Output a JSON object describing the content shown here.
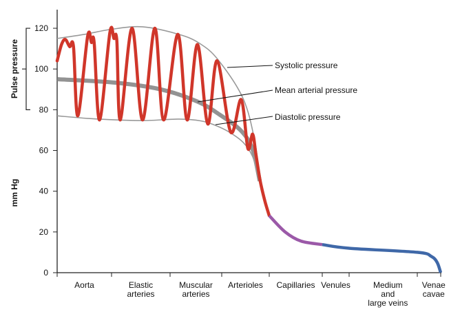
{
  "chart_data": {
    "type": "line",
    "ylabel": "mm Hg",
    "bracket_label": "Pulse pressure",
    "bracket_range": [
      80,
      120
    ],
    "ylim": [
      0,
      130
    ],
    "yticks": [
      0,
      20,
      40,
      60,
      80,
      100,
      120
    ],
    "grid": false,
    "categories": [
      [
        "Aorta"
      ],
      [
        "Elastic",
        "arteries"
      ],
      [
        "Muscular",
        "arteries"
      ],
      [
        "Arterioles"
      ],
      [
        "Capillaries"
      ],
      [
        "Venules"
      ],
      [
        "Medium",
        "and",
        "large veins"
      ],
      [
        "Venae",
        "cavae"
      ]
    ],
    "category_spans": [
      [
        0,
        1
      ],
      [
        1,
        2
      ],
      [
        2,
        3
      ],
      [
        3,
        4
      ],
      [
        4,
        5
      ],
      [
        5,
        6
      ],
      [
        6,
        7.4
      ],
      [
        7.4,
        8
      ]
    ],
    "annotations": {
      "systolic": "Systolic pressure",
      "mean": "Mean arterial pressure",
      "diastolic": "Diastolic pressure"
    },
    "colors": {
      "arterial": "#d0362a",
      "capillary": "#9b59a8",
      "venous": "#3f68a8",
      "envelope": "#999999",
      "mean": "#808080"
    },
    "series": {
      "systolic": [
        [
          0,
          115
        ],
        [
          0.5,
          117
        ],
        [
          1,
          119.5
        ],
        [
          1.53,
          120.7
        ],
        [
          2.17,
          117
        ],
        [
          2.57,
          112.6
        ],
        [
          2.93,
          104.5
        ],
        [
          3.45,
          85.5
        ],
        [
          3.7,
          64
        ],
        [
          3.8,
          45
        ]
      ],
      "diastolic": [
        [
          0,
          77
        ],
        [
          0.7,
          75.5
        ],
        [
          1.53,
          74.7
        ],
        [
          2.17,
          75.4
        ],
        [
          2.6,
          74.5
        ],
        [
          2.88,
          72.3
        ],
        [
          3.16,
          69
        ],
        [
          3.45,
          64
        ],
        [
          3.65,
          57
        ],
        [
          3.8,
          45
        ]
      ],
      "mean": [
        [
          0,
          95
        ],
        [
          1.06,
          93.3
        ],
        [
          1.84,
          90
        ],
        [
          2.53,
          84
        ],
        [
          2.97,
          77.4
        ],
        [
          3.41,
          69.6
        ],
        [
          3.65,
          60.5
        ],
        [
          3.8,
          45
        ]
      ],
      "arterial_pressure": [
        [
          0,
          104
        ],
        [
          0.08,
          112
        ],
        [
          0.15,
          114.5
        ],
        [
          0.23,
          111
        ],
        [
          0.3,
          111
        ],
        [
          0.38,
          77
        ],
        [
          0.56,
          116
        ],
        [
          0.63,
          113
        ],
        [
          0.68,
          113
        ],
        [
          0.78,
          75
        ],
        [
          0.97,
          118
        ],
        [
          1.04,
          115
        ],
        [
          1.09,
          114
        ],
        [
          1.15,
          75
        ],
        [
          1.35,
          120
        ],
        [
          1.53,
          75
        ],
        [
          1.74,
          120
        ],
        [
          1.89,
          75
        ],
        [
          2.15,
          117
        ],
        [
          2.33,
          75
        ],
        [
          2.53,
          112
        ],
        [
          2.73,
          73
        ],
        [
          2.91,
          104
        ],
        [
          3.19,
          69
        ],
        [
          3.41,
          85
        ],
        [
          3.55,
          61
        ],
        [
          3.65,
          68
        ],
        [
          3.72,
          58
        ],
        [
          3.81,
          45
        ],
        [
          3.91,
          35
        ],
        [
          4,
          28
        ]
      ],
      "capillary_pressure": [
        [
          4,
          28
        ],
        [
          4.3,
          20
        ],
        [
          4.6,
          15.5
        ],
        [
          5,
          13.8
        ]
      ],
      "venous_pressure": [
        [
          5,
          13.8
        ],
        [
          6,
          12
        ],
        [
          7,
          10
        ],
        [
          7.6,
          8
        ],
        [
          7.85,
          5
        ],
        [
          8,
          0
        ]
      ]
    }
  }
}
